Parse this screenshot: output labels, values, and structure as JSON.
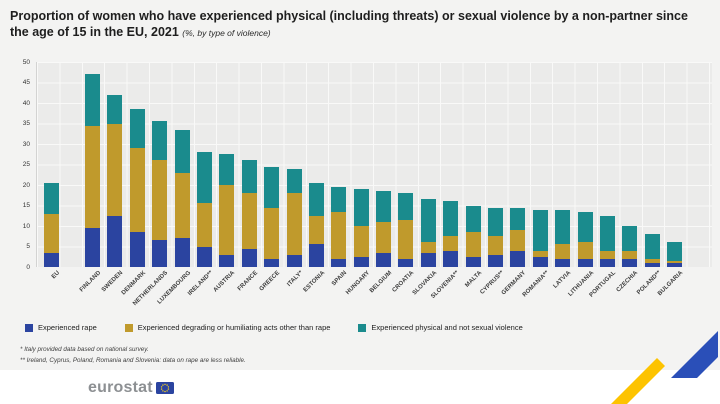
{
  "footnotes": {
    "line1": "* Italy provided data based on national survey.",
    "line2": "** Ireland, Cyprus, Poland, Romania and Slovenia: data on rape are less reliable."
  },
  "footer": {
    "logo_text": "eurostat"
  },
  "decor": {
    "ribbon_yellow": "#fdc300",
    "ribbon_white": "#fafafa",
    "ribbon_blue": "#2a4fb8",
    "flag_blue": "#2b44a0",
    "star_yellow": "#ffd617"
  },
  "chart_data": {
    "type": "bar",
    "stacked": true,
    "title": "Proportion of women who have experienced physical (including threats) or sexual violence by a non-partner since the age of 15 in the EU, 2021",
    "subtitle": "(%, by type of violence)",
    "ylabel": "",
    "xlabel": "",
    "ylim": [
      0,
      50
    ],
    "yticks": [
      0,
      5,
      10,
      15,
      20,
      25,
      30,
      35,
      40,
      45,
      50
    ],
    "grid": true,
    "legend_position": "bottom",
    "categories": [
      "EU",
      "FINLAND",
      "SWEDEN",
      "DENMARK",
      "NETHERLANDS",
      "LUXEMBOURG",
      "IRELAND**",
      "AUSTRIA",
      "FRANCE",
      "GREECE",
      "ITALY*",
      "ESTONIA",
      "SPAIN",
      "HUNGARY",
      "BELGIUM",
      "CROATIA",
      "SLOVAKIA",
      "SLOVENIA**",
      "MALTA",
      "CYPRUS**",
      "GERMANY",
      "ROMANIA**",
      "LATVIA",
      "LITHUANIA",
      "PORTUGAL",
      "CZECHIA",
      "POLAND**",
      "BULGARIA"
    ],
    "series": [
      {
        "name": "Experienced rape",
        "color": "#2b44a0",
        "values": [
          3.5,
          9.5,
          12.5,
          8.5,
          6.5,
          7,
          5,
          3,
          4.5,
          2,
          3,
          5.5,
          2,
          2.5,
          3.5,
          2,
          3.5,
          4,
          2.5,
          3,
          4,
          2.5,
          2,
          2,
          2,
          2,
          1,
          1
        ]
      },
      {
        "name": "Experienced degrading or humiliating acts other than rape",
        "color": "#c09a2c",
        "values": [
          9.5,
          25,
          22.5,
          20.5,
          19.5,
          16,
          10.5,
          17,
          13.5,
          12.5,
          15,
          7,
          11.5,
          7.5,
          7.5,
          9.5,
          2.5,
          3.5,
          6,
          4.5,
          5,
          1.5,
          3.5,
          4,
          2,
          2,
          1,
          0.5
        ]
      },
      {
        "name": "Experienced physical and not sexual violence",
        "color": "#1a8b8d",
        "values": [
          7.5,
          12.5,
          7,
          9.5,
          9.5,
          10.5,
          12.5,
          7.5,
          8,
          10,
          6,
          8,
          6,
          9,
          7.5,
          6.5,
          10.5,
          8.5,
          6.5,
          7,
          5.5,
          10,
          8.5,
          7.5,
          8.5,
          6,
          6,
          4.5
        ]
      }
    ]
  }
}
